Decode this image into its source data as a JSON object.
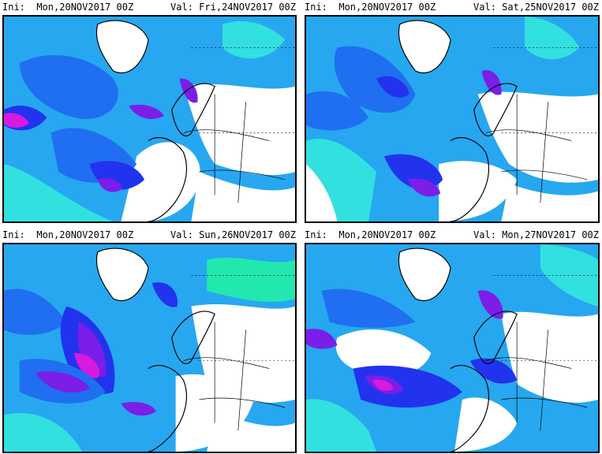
{
  "panels": [
    {
      "ini_label": "Ini:",
      "ini_value": "Mon,20NOV2017 00Z",
      "val_label": "Val:",
      "val_value": "Fri,24NOV2017 00Z"
    },
    {
      "ini_label": "Ini:",
      "ini_value": "Mon,20NOV2017 00Z",
      "val_label": "Val:",
      "val_value": "Sat,25NOV2017 00Z"
    },
    {
      "ini_label": "Ini:",
      "ini_value": "Mon,20NOV2017 00Z",
      "val_label": "Val:",
      "val_value": "Sun,26NOV2017 00Z"
    },
    {
      "ini_label": "Ini:",
      "ini_value": "Mon,20NOV2017 00Z",
      "val_label": "Val:",
      "val_value": "Mon,27NOV2017 00Z"
    }
  ],
  "colors": {
    "background_field": "#27a7f0",
    "light_cyan": "#33e0e0",
    "aqua_green": "#22e8b0",
    "mid_blue": "#1f6ff0",
    "deep_blue": "#2233ee",
    "violet": "#7a1ee8",
    "magenta": "#d81ae0",
    "land_outline": "#000000",
    "clear": "#ffffff"
  }
}
